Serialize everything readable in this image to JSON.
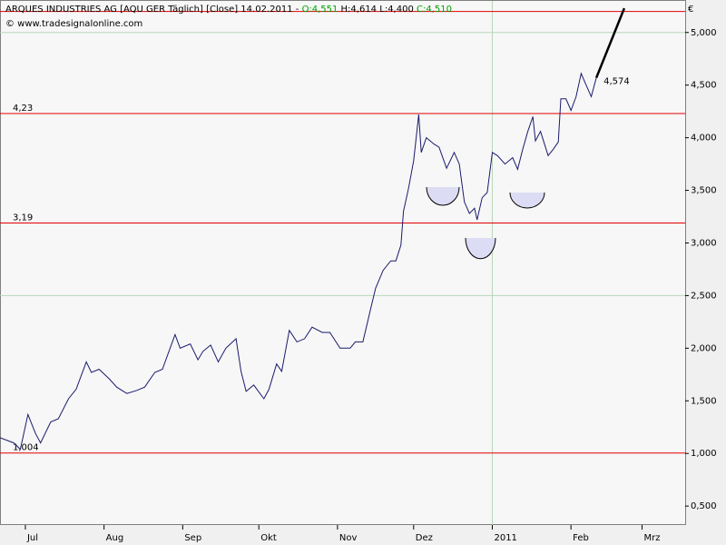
{
  "chart_data": {
    "type": "line",
    "title": "ARQUES INDUSTRIES AG [AQU GER  Täglich] [Close] 14.02.2011 -",
    "ohlc": [
      {
        "label": "O:4,551",
        "color": "#00a000"
      },
      {
        "label": "H:4,614",
        "color": "#000000"
      },
      {
        "label": "L:4,400",
        "color": "#000000"
      },
      {
        "label": "C:4,510",
        "color": "#00a000"
      }
    ],
    "source": "© www.tradesignalonline.com",
    "unit": "€",
    "last_label": "4,574",
    "series": [
      {
        "color": "#1a1a6e",
        "x": [
          -10,
          -4.6,
          -2,
          1,
          4,
          6,
          10,
          13,
          17,
          20,
          24,
          26,
          29,
          33,
          36,
          40,
          44,
          47,
          51,
          54,
          59,
          61,
          65,
          68,
          70,
          73,
          76,
          79,
          83,
          85,
          87,
          90,
          94,
          96,
          99,
          101,
          104,
          107,
          110,
          113,
          117,
          120,
          124,
          128,
          130,
          133,
          136,
          138,
          141,
          144,
          146,
          148,
          149,
          151,
          153,
          155,
          156,
          158,
          161,
          163,
          166,
          169,
          171,
          173,
          175,
          177,
          178,
          180,
          182,
          184,
          186,
          189,
          192,
          194,
          196,
          198,
          200,
          201,
          203,
          206,
          208,
          210,
          211,
          213,
          215,
          217,
          219,
          221,
          223,
          225
        ],
        "values": [
          1.15,
          1.1,
          1.04,
          1.37,
          1.19,
          1.1,
          1.3,
          1.33,
          1.52,
          1.61,
          1.87,
          1.77,
          1.8,
          1.71,
          1.63,
          1.57,
          1.6,
          1.63,
          1.77,
          1.8,
          2.13,
          2.0,
          2.04,
          1.89,
          1.97,
          2.03,
          1.87,
          2.0,
          2.09,
          1.78,
          1.59,
          1.65,
          1.52,
          1.61,
          1.85,
          1.78,
          2.17,
          2.06,
          2.09,
          2.2,
          2.15,
          2.15,
          2.0,
          2.0,
          2.06,
          2.06,
          2.37,
          2.57,
          2.74,
          2.83,
          2.83,
          2.98,
          3.3,
          3.52,
          3.78,
          4.22,
          3.86,
          4.0,
          3.94,
          3.91,
          3.71,
          3.86,
          3.75,
          3.39,
          3.28,
          3.33,
          3.22,
          3.43,
          3.48,
          3.86,
          3.83,
          3.75,
          3.81,
          3.7,
          3.89,
          4.06,
          4.2,
          3.97,
          4.06,
          3.83,
          3.89,
          3.96,
          4.37,
          4.37,
          4.26,
          4.39,
          4.61,
          4.5,
          4.39,
          4.57
        ]
      }
    ],
    "trend_line": {
      "x": [
        225,
        236
      ],
      "values": [
        4.57,
        5.23
      ],
      "color": "#000000"
    },
    "hlines": [
      {
        "value": 5.2,
        "color": "#e00000"
      },
      {
        "value": 4.23,
        "label": "4,23",
        "color": "#e00000"
      },
      {
        "value": 3.19,
        "label": "3,19",
        "color": "#e00000"
      },
      {
        "value": 1.004,
        "label": "1,004",
        "color": "#e00000"
      }
    ],
    "xlim": [
      -10,
      260
    ],
    "ylim": [
      0.32,
      5.3
    ],
    "xticks": [
      {
        "value": 0,
        "label": "Jul"
      },
      {
        "value": 31,
        "label": "Aug"
      },
      {
        "value": 62,
        "label": "Sep"
      },
      {
        "value": 92,
        "label": "Okt"
      },
      {
        "value": 123,
        "label": "Nov"
      },
      {
        "value": 153,
        "label": "Dez"
      },
      {
        "value": 184,
        "label": "2011"
      },
      {
        "value": 215,
        "label": "Feb"
      },
      {
        "value": 243,
        "label": "Mrz"
      }
    ],
    "yticks": [
      {
        "value": 0.5,
        "label": "0,500"
      },
      {
        "value": 1,
        "label": "1,000"
      },
      {
        "value": 1.5,
        "label": "1,500"
      },
      {
        "value": 2,
        "label": "2,000"
      },
      {
        "value": 2.5,
        "label": "2,500"
      },
      {
        "value": 3,
        "label": "3,000"
      },
      {
        "value": 3.5,
        "label": "3,500"
      },
      {
        "value": 4,
        "label": "4,000"
      },
      {
        "value": 4.5,
        "label": "4,500"
      },
      {
        "value": 5,
        "label": "5,000"
      }
    ],
    "grid_x": [
      184
    ],
    "grid_y": [
      2.5,
      5
    ],
    "grid_color": "#b8d8b8"
  }
}
